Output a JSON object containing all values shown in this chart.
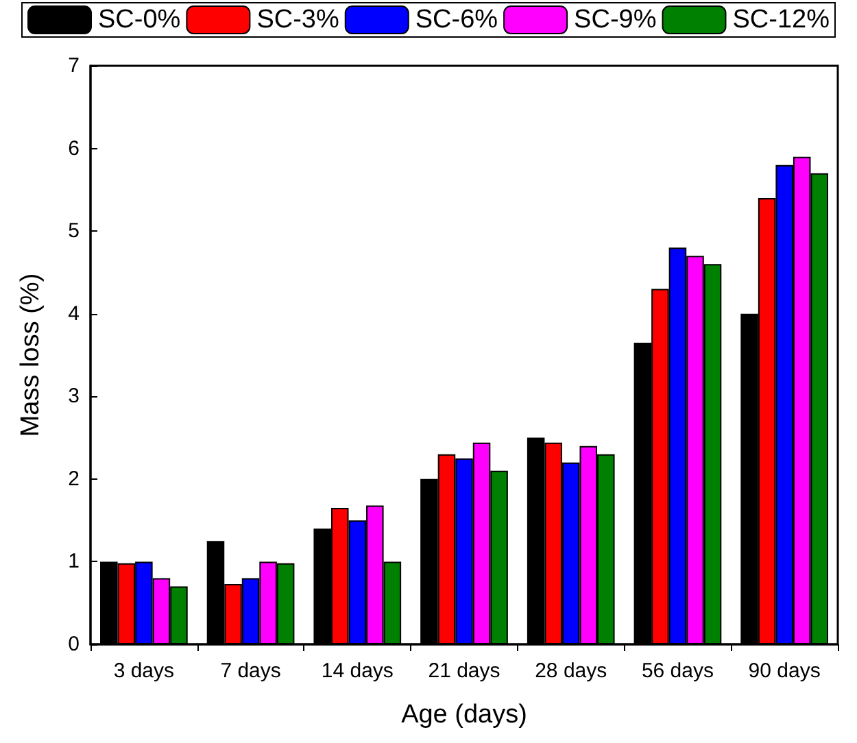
{
  "chart_data": {
    "type": "bar",
    "xlabel": "Age (days)",
    "ylabel": "Mass loss (%)",
    "categories": [
      "3 days",
      "7 days",
      "14 days",
      "21 days",
      "28 days",
      "56 days",
      "90 days"
    ],
    "series": [
      {
        "name": "SC-0%",
        "color": "#000000",
        "values": [
          1.0,
          1.25,
          1.4,
          2.0,
          2.5,
          3.65,
          4.0
        ]
      },
      {
        "name": "SC-3%",
        "color": "#ff0000",
        "values": [
          0.98,
          0.73,
          1.65,
          2.3,
          2.44,
          4.3,
          5.4
        ]
      },
      {
        "name": "SC-6%",
        "color": "#0000ff",
        "values": [
          1.0,
          0.8,
          1.5,
          2.25,
          2.2,
          4.8,
          5.8
        ]
      },
      {
        "name": "SC-9%",
        "color": "#ff00ff",
        "values": [
          0.8,
          1.0,
          1.68,
          2.44,
          2.4,
          4.7,
          5.9
        ]
      },
      {
        "name": "SC-12%",
        "color": "#008000",
        "values": [
          0.7,
          0.98,
          1.0,
          2.1,
          2.3,
          4.6,
          5.7
        ]
      }
    ],
    "ylim": [
      0,
      7
    ],
    "yticks": [
      0,
      1,
      2,
      3,
      4,
      5,
      6,
      7
    ],
    "grid": false,
    "legend": "top"
  }
}
